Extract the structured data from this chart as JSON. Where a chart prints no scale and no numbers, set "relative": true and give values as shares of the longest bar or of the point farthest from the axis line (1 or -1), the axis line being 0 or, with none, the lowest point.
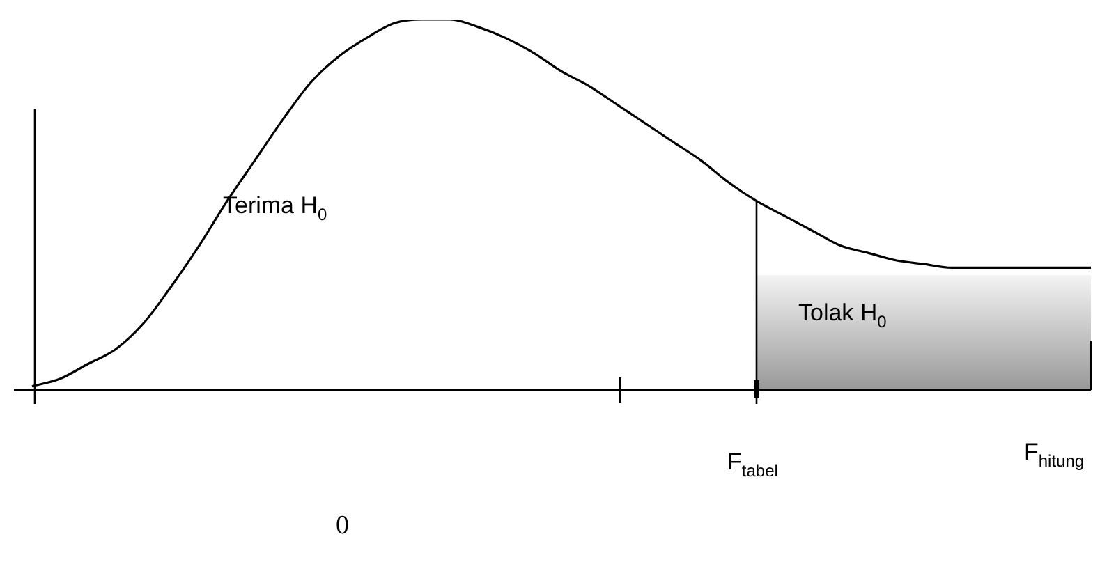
{
  "chart_data": {
    "type": "line",
    "relative": true,
    "legend": false,
    "marker": "none",
    "categories": [
      null,
      null,
      null,
      null,
      null,
      null,
      null,
      null,
      null,
      null,
      null,
      null,
      null,
      null,
      null,
      null,
      null,
      null,
      null,
      null,
      null,
      null,
      null,
      null,
      null,
      null,
      null,
      null,
      null,
      null,
      null,
      null,
      null,
      null,
      null,
      null,
      null,
      null,
      null
    ],
    "series": [
      {
        "color": "#000000",
        "values": [
          0.01,
          0.03,
          0.07,
          0.11,
          0.18,
          0.28,
          0.39,
          0.51,
          0.62,
          0.73,
          0.83,
          0.9,
          0.95,
          0.99,
          1.0,
          1.0,
          0.98,
          0.95,
          0.91,
          0.86,
          0.82,
          0.77,
          0.72,
          0.67,
          0.62,
          0.56,
          0.51,
          0.47,
          0.43,
          0.39,
          0.37,
          0.35,
          0.34,
          0.33,
          0.33,
          0.33,
          0.33,
          0.33,
          0.33
        ]
      },
      {
        "type": "area",
        "color": "#999999",
        "values": [
          null,
          null,
          null,
          null,
          null,
          null,
          null,
          null,
          null,
          null,
          null,
          null,
          null,
          null,
          null,
          null,
          null,
          null,
          null,
          null,
          null,
          null,
          null,
          null,
          null,
          null,
          0.31,
          0.31,
          0.31,
          0.31,
          0.31,
          0.31,
          0.31,
          0.31,
          0.31,
          0.31,
          0.31,
          0.31,
          0.31
        ]
      }
    ],
    "annotations": [
      "Terima H$_{0}$",
      "Tolak H$_{0}$",
      "F$_{tabel}$",
      "F$_{hitung}$",
      "0"
    ]
  }
}
